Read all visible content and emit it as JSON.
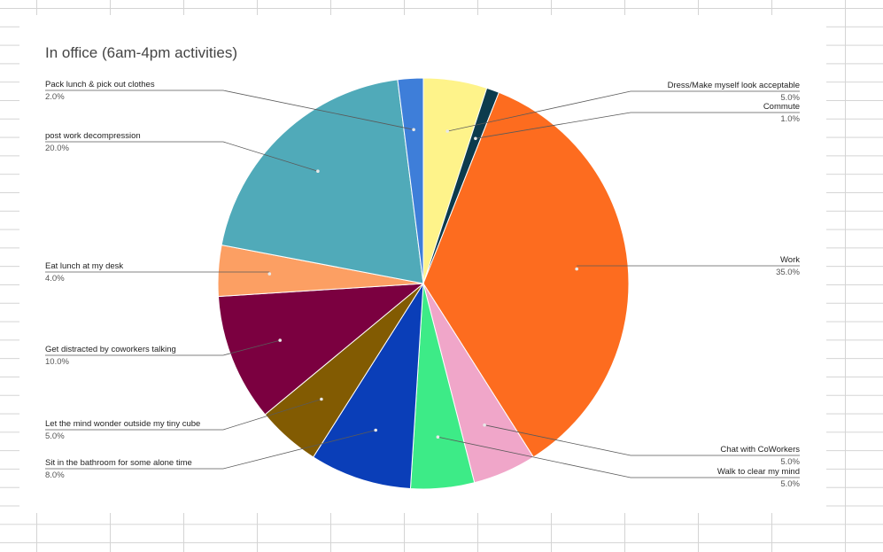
{
  "chart_data": {
    "type": "pie",
    "title": "In office (6am-4pm activities)",
    "start_angle_deg": 0,
    "direction": "clockwise",
    "slices": [
      {
        "label": "Dress/Make myself look acceptable",
        "value": 5.0,
        "pct_label": "5.0%",
        "color": "#fef38a",
        "side": "right"
      },
      {
        "label": "Commute",
        "value": 1.0,
        "pct_label": "1.0%",
        "color": "#0c3b4d",
        "side": "right"
      },
      {
        "label": "Work",
        "value": 35.0,
        "pct_label": "35.0%",
        "color": "#fd6c1f",
        "side": "right"
      },
      {
        "label": "Chat with CoWorkers",
        "value": 5.0,
        "pct_label": "5.0%",
        "color": "#f0a6c9",
        "side": "right"
      },
      {
        "label": "Walk to clear my mind",
        "value": 5.0,
        "pct_label": "5.0%",
        "color": "#3deb87",
        "side": "right"
      },
      {
        "label": "Sit in the bathroom for some alone time",
        "value": 8.0,
        "pct_label": "8.0%",
        "color": "#0a3eb8",
        "side": "left"
      },
      {
        "label": "Let the mind wonder outside my tiny cube",
        "value": 5.0,
        "pct_label": "5.0%",
        "color": "#825b02",
        "side": "left"
      },
      {
        "label": "Get distracted by coworkers talking",
        "value": 10.0,
        "pct_label": "10.0%",
        "color": "#7b0040",
        "side": "left"
      },
      {
        "label": "Eat lunch at my desk",
        "value": 4.0,
        "pct_label": "4.0%",
        "color": "#fc9f63",
        "side": "left"
      },
      {
        "label": "post work decompression",
        "value": 20.0,
        "pct_label": "20.0%",
        "color": "#50aab9",
        "side": "left"
      },
      {
        "label": "Pack lunch & pick out clothes",
        "value": 2.0,
        "pct_label": "2.0%",
        "color": "#3e7ed9",
        "side": "left"
      }
    ],
    "legend": "none",
    "data_labels": "outside-with-leader-lines"
  }
}
